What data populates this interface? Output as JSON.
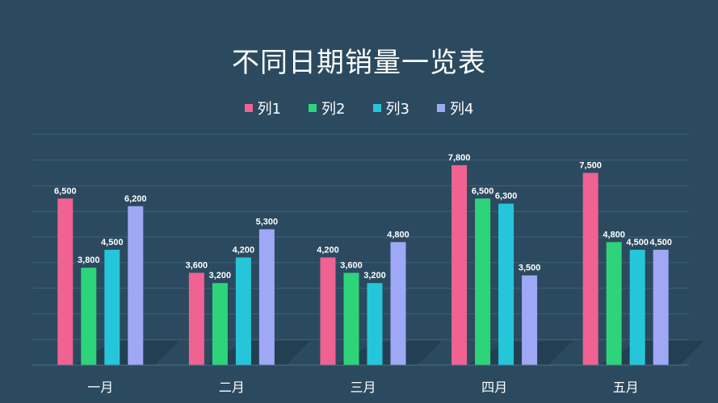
{
  "colors": {
    "background": "#2b4a5f",
    "grid": "#3f6175",
    "series": [
      "#f06292",
      "#2ed47a",
      "#26c6da",
      "#9fa8f5"
    ],
    "text": "#ffffff"
  },
  "chart_data": {
    "type": "bar",
    "title": "不同日期销量一览表",
    "xlabel": "",
    "ylabel": "",
    "categories": [
      "一月",
      "二月",
      "三月",
      "四月",
      "五月"
    ],
    "series": [
      {
        "name": "列1",
        "values": [
          6500,
          3600,
          4200,
          7800,
          7500
        ]
      },
      {
        "name": "列2",
        "values": [
          3800,
          3200,
          3600,
          6500,
          4800
        ]
      },
      {
        "name": "列3",
        "values": [
          4500,
          4200,
          3200,
          6300,
          4500
        ]
      },
      {
        "name": "列4",
        "values": [
          6200,
          5300,
          4800,
          3500,
          4500
        ]
      }
    ],
    "value_labels": [
      [
        "6,500",
        "3,600",
        "4,200",
        "7,800",
        "7,500"
      ],
      [
        "3,800",
        "3,200",
        "3,600",
        "6,500",
        "4,800"
      ],
      [
        "4,500",
        "4,200",
        "3,200",
        "6,300",
        "4,500"
      ],
      [
        "6,200",
        "5,300",
        "4,800",
        "3,500",
        "4,500"
      ]
    ],
    "ylim": [
      0,
      9000
    ],
    "grid": true,
    "legend_position": "top"
  }
}
